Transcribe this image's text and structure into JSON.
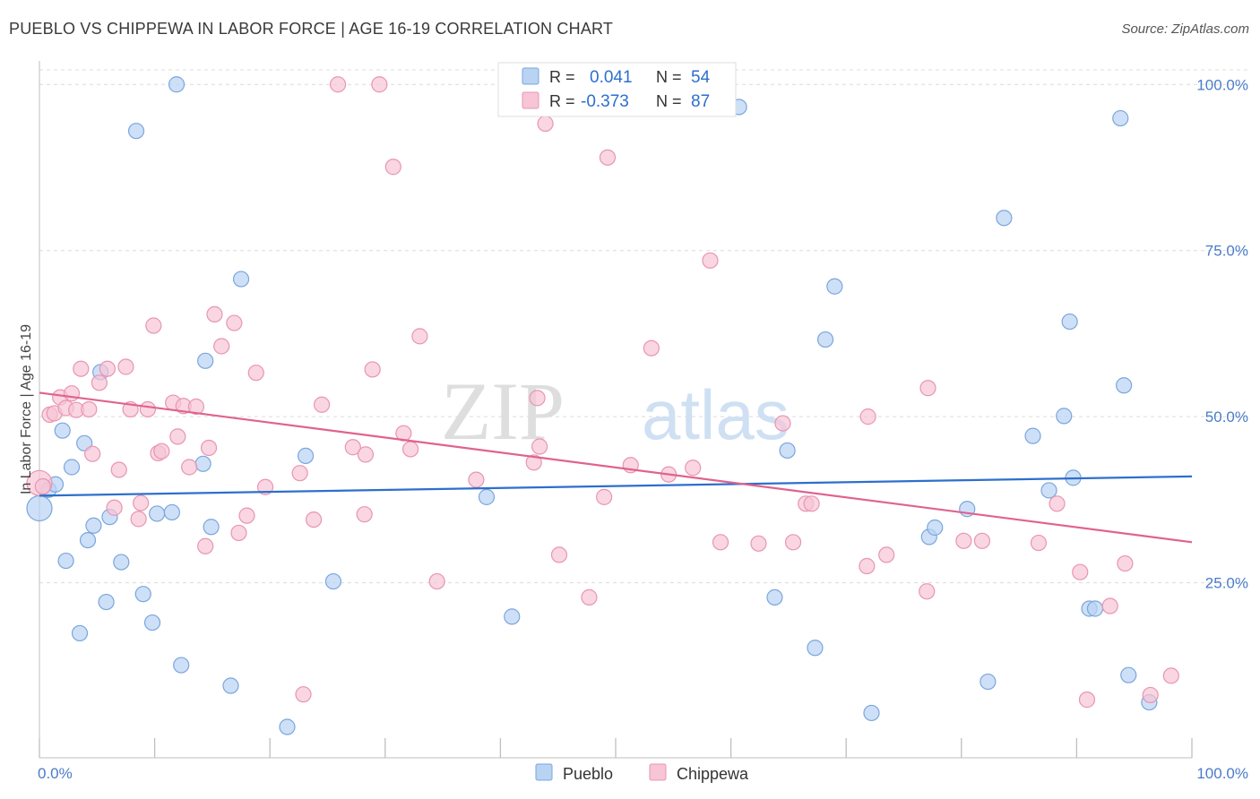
{
  "title": "PUEBLO VS CHIPPEWA IN LABOR FORCE | AGE 16-19 CORRELATION CHART",
  "source": "Source: ZipAtlas.com",
  "watermark": {
    "bold": "ZIP",
    "light": "atlas"
  },
  "colors": {
    "pueblo_fill": "#b9d3f3",
    "pueblo_stroke": "#7aa6dc",
    "pueblo_line": "#2d6fcc",
    "chippewa_fill": "#f7c5d5",
    "chippewa_stroke": "#e895b2",
    "chippewa_line": "#e0628f",
    "tick_label": "#4a7cc7",
    "grid": "#dcdcdc"
  },
  "legend": {
    "rows": [
      {
        "r_label": "R =",
        "r_value": "0.041",
        "n_label": "N =",
        "n_value": "54",
        "series": "pueblo"
      },
      {
        "r_label": "R =",
        "r_value": "-0.373",
        "n_label": "N =",
        "n_value": "87",
        "series": "chippewa"
      }
    ],
    "bottom": [
      {
        "label": "Pueblo",
        "series": "pueblo"
      },
      {
        "label": "Chippewa",
        "series": "chippewa"
      }
    ]
  },
  "chart_data": {
    "type": "scatter",
    "title": "PUEBLO VS CHIPPEWA IN LABOR FORCE | AGE 16-19 CORRELATION CHART",
    "xlabel": "",
    "ylabel": "In Labor Force | Age 16-19",
    "xlim": [
      0,
      100
    ],
    "ylim": [
      0,
      103
    ],
    "x_tick_labels": [
      "0.0%",
      "100.0%"
    ],
    "y_ticks": [
      25,
      50,
      75,
      100
    ],
    "y_tick_labels": [
      "25.0%",
      "50.0%",
      "75.0%",
      "100.0%"
    ],
    "grid": "horizontal dashed",
    "legend_placement": "top-center",
    "series": [
      {
        "name": "Pueblo",
        "color": "#b9d3f3",
        "trend": {
          "x": [
            0,
            100
          ],
          "y": [
            38.1,
            41.0
          ]
        },
        "points": [
          [
            0.0,
            36.2
          ],
          [
            0.8,
            39.0
          ],
          [
            1.4,
            39.8
          ],
          [
            2.0,
            47.9
          ],
          [
            2.3,
            28.3
          ],
          [
            2.8,
            42.4
          ],
          [
            3.5,
            17.4
          ],
          [
            3.9,
            46.0
          ],
          [
            4.2,
            31.4
          ],
          [
            4.7,
            33.6
          ],
          [
            5.3,
            56.7
          ],
          [
            5.8,
            22.1
          ],
          [
            6.1,
            34.9
          ],
          [
            7.1,
            28.1
          ],
          [
            8.4,
            93.0
          ],
          [
            9.0,
            23.3
          ],
          [
            9.8,
            19.0
          ],
          [
            10.2,
            35.4
          ],
          [
            11.5,
            35.6
          ],
          [
            11.9,
            100.0
          ],
          [
            12.3,
            12.6
          ],
          [
            14.2,
            42.9
          ],
          [
            14.4,
            58.4
          ],
          [
            14.9,
            33.4
          ],
          [
            16.6,
            9.5
          ],
          [
            17.5,
            70.7
          ],
          [
            21.5,
            3.3
          ],
          [
            23.1,
            44.1
          ],
          [
            25.5,
            25.2
          ],
          [
            38.8,
            37.9
          ],
          [
            41.0,
            19.9
          ],
          [
            60.7,
            96.6
          ],
          [
            63.8,
            22.8
          ],
          [
            64.9,
            44.9
          ],
          [
            67.3,
            15.2
          ],
          [
            68.2,
            61.6
          ],
          [
            69.0,
            69.6
          ],
          [
            72.2,
            5.4
          ],
          [
            77.2,
            31.9
          ],
          [
            77.7,
            33.3
          ],
          [
            80.5,
            36.1
          ],
          [
            82.3,
            10.1
          ],
          [
            83.7,
            79.9
          ],
          [
            86.2,
            47.1
          ],
          [
            87.6,
            38.9
          ],
          [
            88.9,
            50.1
          ],
          [
            89.4,
            64.3
          ],
          [
            89.7,
            40.8
          ],
          [
            91.1,
            21.1
          ],
          [
            91.6,
            21.1
          ],
          [
            93.8,
            94.9
          ],
          [
            94.1,
            54.7
          ],
          [
            94.5,
            11.1
          ],
          [
            96.3,
            7.0
          ]
        ]
      },
      {
        "name": "Chippewa",
        "color": "#f7c5d5",
        "trend": {
          "x": [
            0,
            100
          ],
          "y": [
            53.6,
            31.1
          ]
        },
        "points": [
          [
            0.0,
            40.0
          ],
          [
            0.3,
            39.5
          ],
          [
            0.9,
            50.3
          ],
          [
            1.3,
            50.5
          ],
          [
            1.8,
            52.9
          ],
          [
            2.3,
            51.3
          ],
          [
            2.8,
            53.5
          ],
          [
            3.2,
            51.0
          ],
          [
            3.6,
            57.2
          ],
          [
            4.3,
            51.1
          ],
          [
            4.6,
            44.4
          ],
          [
            5.2,
            55.1
          ],
          [
            5.9,
            57.2
          ],
          [
            6.5,
            36.3
          ],
          [
            6.9,
            42.0
          ],
          [
            7.5,
            57.5
          ],
          [
            7.9,
            51.1
          ],
          [
            8.6,
            34.6
          ],
          [
            8.8,
            37.0
          ],
          [
            9.4,
            51.1
          ],
          [
            9.9,
            63.7
          ],
          [
            10.3,
            44.5
          ],
          [
            10.6,
            44.8
          ],
          [
            11.6,
            52.1
          ],
          [
            12.0,
            47.0
          ],
          [
            12.5,
            51.6
          ],
          [
            13.0,
            42.4
          ],
          [
            13.6,
            51.5
          ],
          [
            14.4,
            30.5
          ],
          [
            14.7,
            45.3
          ],
          [
            15.2,
            65.4
          ],
          [
            15.8,
            60.6
          ],
          [
            16.9,
            64.1
          ],
          [
            17.3,
            32.5
          ],
          [
            18.0,
            35.1
          ],
          [
            18.8,
            56.6
          ],
          [
            19.6,
            39.4
          ],
          [
            22.6,
            41.5
          ],
          [
            22.9,
            8.2
          ],
          [
            23.8,
            34.5
          ],
          [
            24.5,
            51.8
          ],
          [
            25.9,
            100.0
          ],
          [
            27.2,
            45.4
          ],
          [
            28.2,
            35.3
          ],
          [
            28.3,
            44.3
          ],
          [
            28.9,
            57.1
          ],
          [
            29.5,
            100.0
          ],
          [
            30.7,
            87.6
          ],
          [
            31.6,
            47.5
          ],
          [
            32.2,
            45.1
          ],
          [
            33.0,
            62.1
          ],
          [
            34.5,
            25.2
          ],
          [
            37.9,
            40.5
          ],
          [
            42.9,
            43.1
          ],
          [
            43.2,
            52.8
          ],
          [
            43.4,
            45.5
          ],
          [
            43.9,
            94.1
          ],
          [
            45.1,
            29.2
          ],
          [
            47.7,
            22.8
          ],
          [
            49.0,
            37.9
          ],
          [
            49.3,
            89.0
          ],
          [
            51.3,
            42.7
          ],
          [
            53.1,
            60.3
          ],
          [
            54.6,
            41.3
          ],
          [
            56.7,
            42.3
          ],
          [
            58.2,
            73.5
          ],
          [
            59.1,
            31.1
          ],
          [
            62.4,
            30.9
          ],
          [
            64.5,
            49.0
          ],
          [
            65.4,
            31.1
          ],
          [
            66.5,
            36.9
          ],
          [
            67.0,
            36.9
          ],
          [
            71.8,
            27.5
          ],
          [
            71.9,
            50.0
          ],
          [
            73.5,
            29.2
          ],
          [
            77.0,
            23.7
          ],
          [
            77.1,
            54.3
          ],
          [
            80.2,
            31.3
          ],
          [
            81.8,
            31.3
          ],
          [
            86.7,
            31.0
          ],
          [
            88.3,
            36.9
          ],
          [
            90.3,
            26.6
          ],
          [
            90.9,
            7.4
          ],
          [
            92.9,
            21.5
          ],
          [
            94.2,
            27.9
          ],
          [
            96.4,
            8.1
          ],
          [
            98.2,
            11.0
          ]
        ]
      }
    ]
  }
}
